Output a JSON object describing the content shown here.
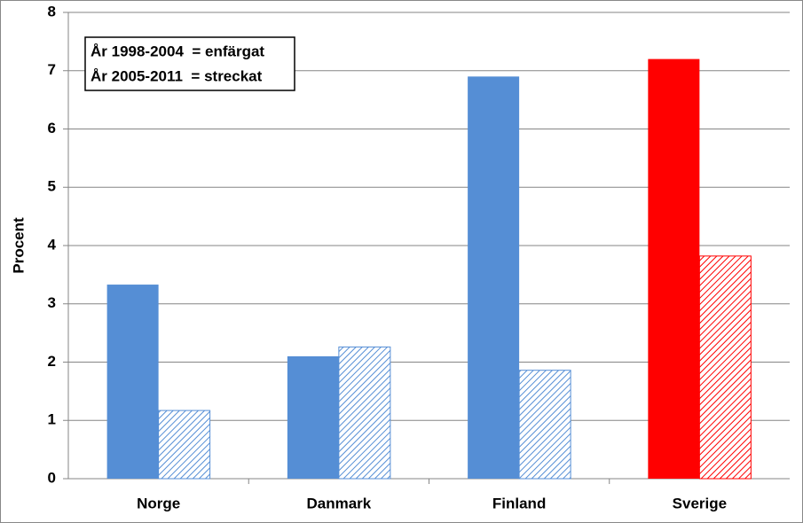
{
  "chart_data": {
    "type": "bar",
    "ylabel": "Procent",
    "categories": [
      "Norge",
      "Danmark",
      "Finland",
      "Sverige"
    ],
    "series": [
      {
        "name": "År 1998-2004  = enfärgat",
        "colors": [
          "#558ed5",
          "#558ed5",
          "#558ed5",
          "#ff0000"
        ],
        "hatched": false,
        "values": [
          3.33,
          2.1,
          6.9,
          7.2
        ]
      },
      {
        "name": "År 2005-2011  = streckat",
        "colors": [
          "#558ed5",
          "#558ed5",
          "#558ed5",
          "#ff0000"
        ],
        "hatched": true,
        "values": [
          1.17,
          2.26,
          1.86,
          3.82
        ]
      }
    ],
    "ylim": [
      0,
      8
    ],
    "yticks": [
      0,
      1,
      2,
      3,
      4,
      5,
      6,
      7,
      8
    ],
    "grid": true,
    "legend": "upper left"
  }
}
